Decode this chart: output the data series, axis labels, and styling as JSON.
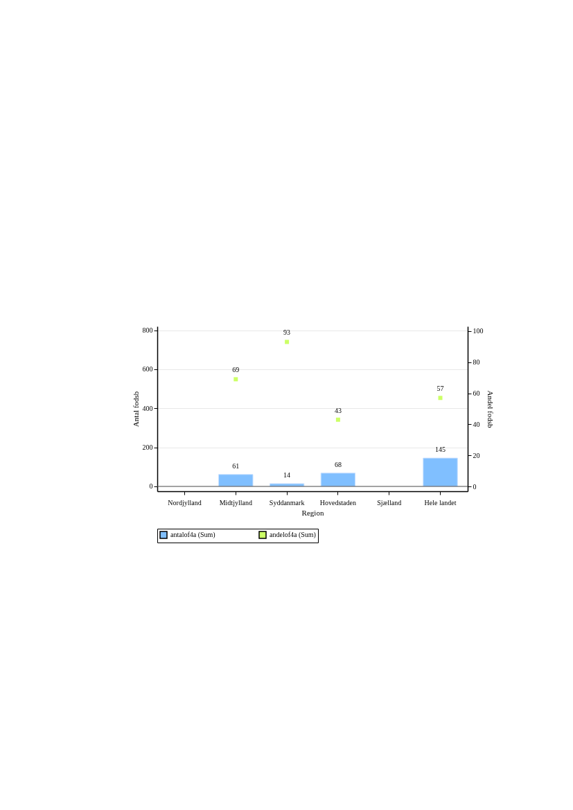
{
  "chart_data": {
    "type": "bar",
    "xlabel": "Region",
    "ylabel": "Antal fodsb",
    "y2label": "Andel fodsb",
    "categories": [
      "Nordjylland",
      "Midtjylland",
      "Syddanmark",
      "Hovedstaden",
      "Sjælland",
      "Hele landet"
    ],
    "series": [
      {
        "name": "antalof4a (Sum)",
        "color": "#80bfff",
        "values": [
          null,
          61,
          14,
          68,
          null,
          145
        ]
      },
      {
        "name": "andelof4a (Sum)",
        "type": "scatter",
        "axis": "y2",
        "color": "#ccff66",
        "values": [
          null,
          69,
          93,
          43,
          null,
          57
        ]
      }
    ],
    "ylim": [
      -25,
      820
    ],
    "yticks": [
      0,
      200,
      400,
      600,
      800
    ],
    "y2lim": [
      -3,
      103
    ],
    "y2ticks": [
      0,
      20,
      40,
      60,
      80,
      100
    ],
    "ref_lines": [
      {
        "axis": "y",
        "value": 0
      }
    ],
    "data_labels": true,
    "grid": "y",
    "legend": "bottom",
    "marker": "square"
  }
}
